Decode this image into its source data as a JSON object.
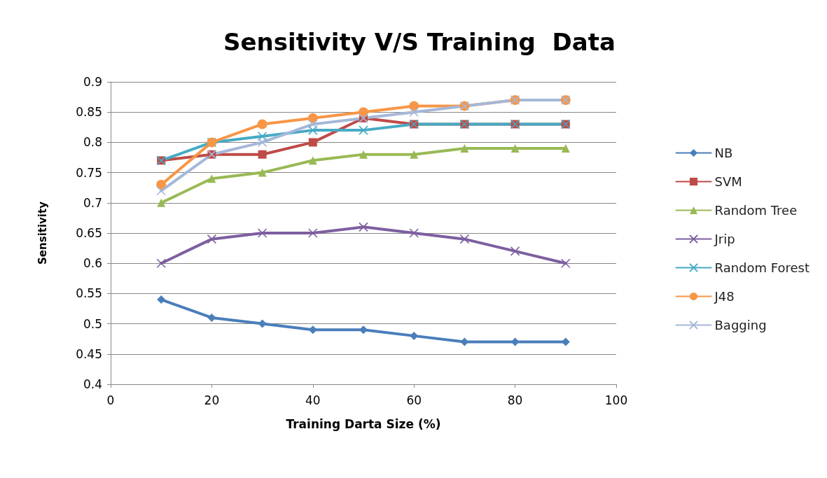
{
  "chart_data": {
    "type": "line",
    "title": "Sensitivity V/S Training  Data",
    "xlabel": "Training Darta Size (%)",
    "ylabel": "Sensitivity",
    "x": [
      10,
      20,
      30,
      40,
      50,
      60,
      70,
      80,
      90
    ],
    "xlim": [
      0,
      100
    ],
    "xticks": [
      0,
      20,
      40,
      60,
      80,
      100
    ],
    "ylim": [
      0.4,
      0.9
    ],
    "yticks": [
      0.4,
      0.45,
      0.5,
      0.55,
      0.6,
      0.65,
      0.7,
      0.75,
      0.8,
      0.85,
      0.9
    ],
    "grid": "y",
    "legend": "right",
    "line_style": "solid",
    "series": [
      {
        "name": "NB",
        "color": "#4a7ebb",
        "marker": "diamond",
        "values": [
          0.54,
          0.51,
          0.5,
          0.49,
          0.49,
          0.48,
          0.47,
          0.47,
          0.47
        ]
      },
      {
        "name": "SVM",
        "color": "#be4b48",
        "marker": "square",
        "values": [
          0.77,
          0.78,
          0.78,
          0.8,
          0.84,
          0.83,
          0.83,
          0.83,
          0.83
        ]
      },
      {
        "name": "Random Tree",
        "color": "#98b954",
        "marker": "triangle",
        "values": [
          0.7,
          0.74,
          0.75,
          0.77,
          0.78,
          0.78,
          0.79,
          0.79,
          0.79
        ]
      },
      {
        "name": "Jrip",
        "color": "#7d5fa0",
        "marker": "cross",
        "values": [
          0.6,
          0.64,
          0.65,
          0.65,
          0.66,
          0.65,
          0.64,
          0.62,
          0.6
        ]
      },
      {
        "name": "Random Forest",
        "color": "#46aac5",
        "marker": "cross",
        "values": [
          0.77,
          0.8,
          0.81,
          0.82,
          0.82,
          0.83,
          0.83,
          0.83,
          0.83
        ]
      },
      {
        "name": "J48",
        "color": "#f79646",
        "marker": "circle",
        "values": [
          0.73,
          0.8,
          0.83,
          0.84,
          0.85,
          0.86,
          0.86,
          0.87,
          0.87
        ]
      },
      {
        "name": "Bagging",
        "color": "#a5b8d9",
        "marker": "cross",
        "values": [
          0.72,
          0.78,
          0.8,
          0.83,
          0.84,
          0.85,
          0.86,
          0.87,
          0.87
        ]
      }
    ]
  }
}
